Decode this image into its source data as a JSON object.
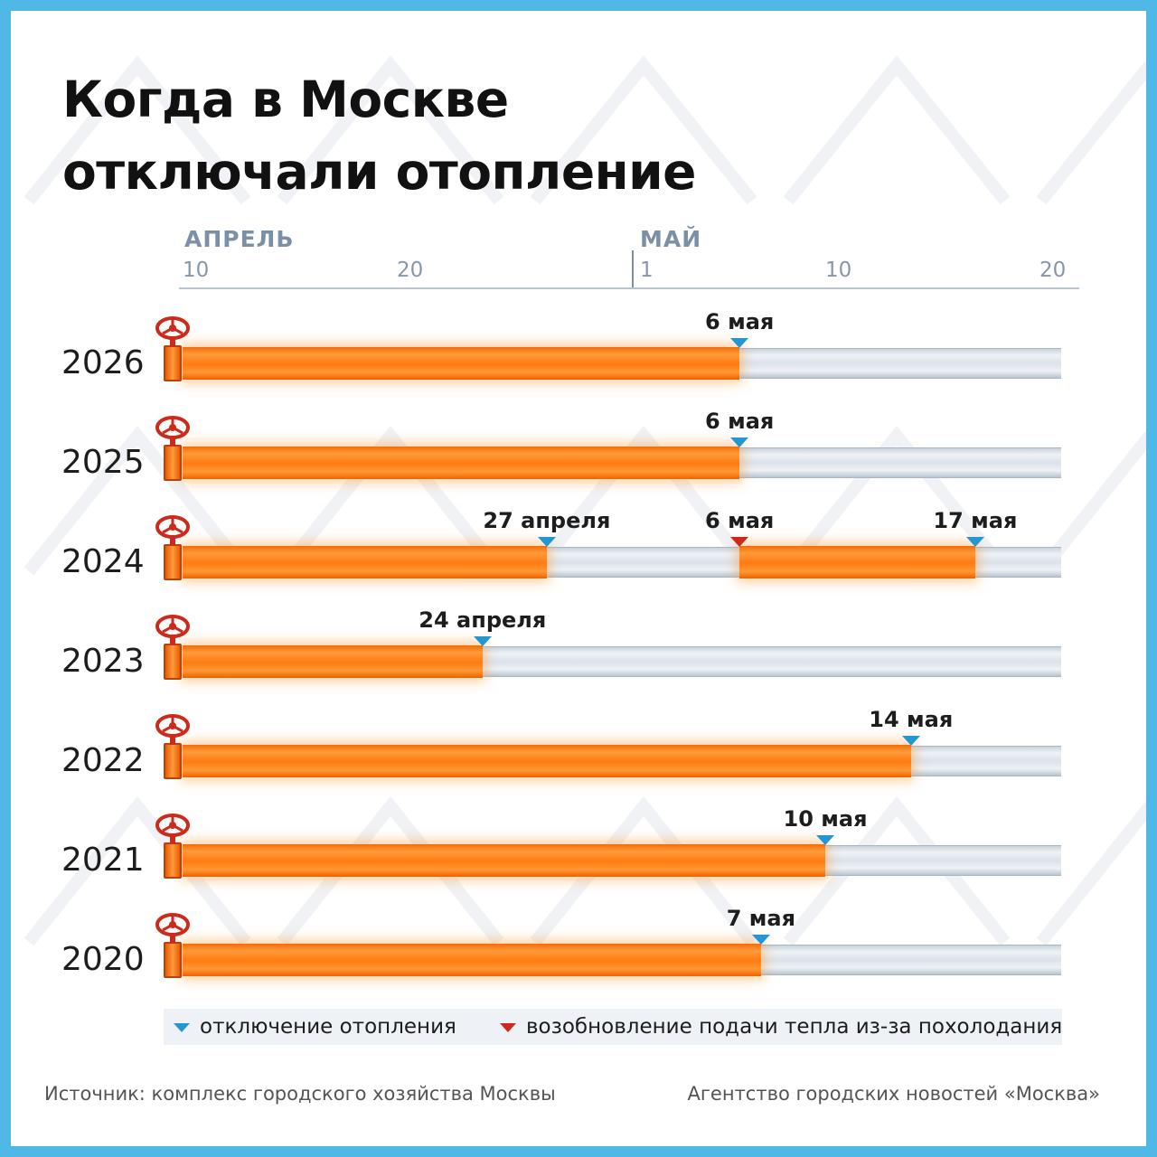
{
  "title": [
    "Когда в Москве",
    "отключали отопление"
  ],
  "colors": {
    "frame": "#4fb8e6",
    "heating": "#ff7b12",
    "off_marker": "#2597d0",
    "resume_marker": "#cc2a1a",
    "pipe_off": "#dbe2ea"
  },
  "chart_data": {
    "type": "bar",
    "orientation": "horizontal",
    "x_axis": {
      "type": "date",
      "months": [
        "АПРЕЛЬ",
        "МАЙ"
      ],
      "ticks": [
        "10",
        "20",
        "1",
        "10",
        "20"
      ],
      "range": [
        "10 апреля",
        "20 мая"
      ]
    },
    "legend": {
      "position": "bottom",
      "items": [
        {
          "label": "отключение отопления",
          "marker": "off"
        },
        {
          "label": "возобновление подачи тепла из-за похолодания",
          "marker": "on"
        }
      ]
    },
    "series": [
      {
        "year": "2026",
        "heating": [
          [
            "10 апреля",
            "6 мая"
          ]
        ],
        "events": [
          {
            "date": "6 мая",
            "type": "off",
            "label": "6 мая"
          }
        ]
      },
      {
        "year": "2025",
        "heating": [
          [
            "10 апреля",
            "6 мая"
          ]
        ],
        "events": [
          {
            "date": "6 мая",
            "type": "off",
            "label": "6 мая"
          }
        ]
      },
      {
        "year": "2024",
        "heating": [
          [
            "10 апреля",
            "27 апреля"
          ],
          [
            "6 мая",
            "17 мая"
          ]
        ],
        "events": [
          {
            "date": "27 апреля",
            "type": "off",
            "label": "27 апреля"
          },
          {
            "date": "6 мая",
            "type": "on",
            "label": "6 мая"
          },
          {
            "date": "17 мая",
            "type": "off",
            "label": "17 мая"
          }
        ]
      },
      {
        "year": "2023",
        "heating": [
          [
            "10 апреля",
            "24 апреля"
          ]
        ],
        "events": [
          {
            "date": "24 апреля",
            "type": "off",
            "label": "24 апреля"
          }
        ]
      },
      {
        "year": "2022",
        "heating": [
          [
            "10 апреля",
            "14 мая"
          ]
        ],
        "events": [
          {
            "date": "14 мая",
            "type": "off",
            "label": "14 мая"
          }
        ]
      },
      {
        "year": "2021",
        "heating": [
          [
            "10 апреля",
            "10 мая"
          ]
        ],
        "events": [
          {
            "date": "10 мая",
            "type": "off",
            "label": "10 мая"
          }
        ]
      },
      {
        "year": "2020",
        "heating": [
          [
            "10 апреля",
            "7 мая"
          ]
        ],
        "events": [
          {
            "date": "7 мая",
            "type": "off",
            "label": "7 мая"
          }
        ]
      }
    ]
  },
  "footer": {
    "source": "Источник: комплекс городского хозяйства Москвы",
    "agency": "Агентство городских новостей «Москва»"
  }
}
